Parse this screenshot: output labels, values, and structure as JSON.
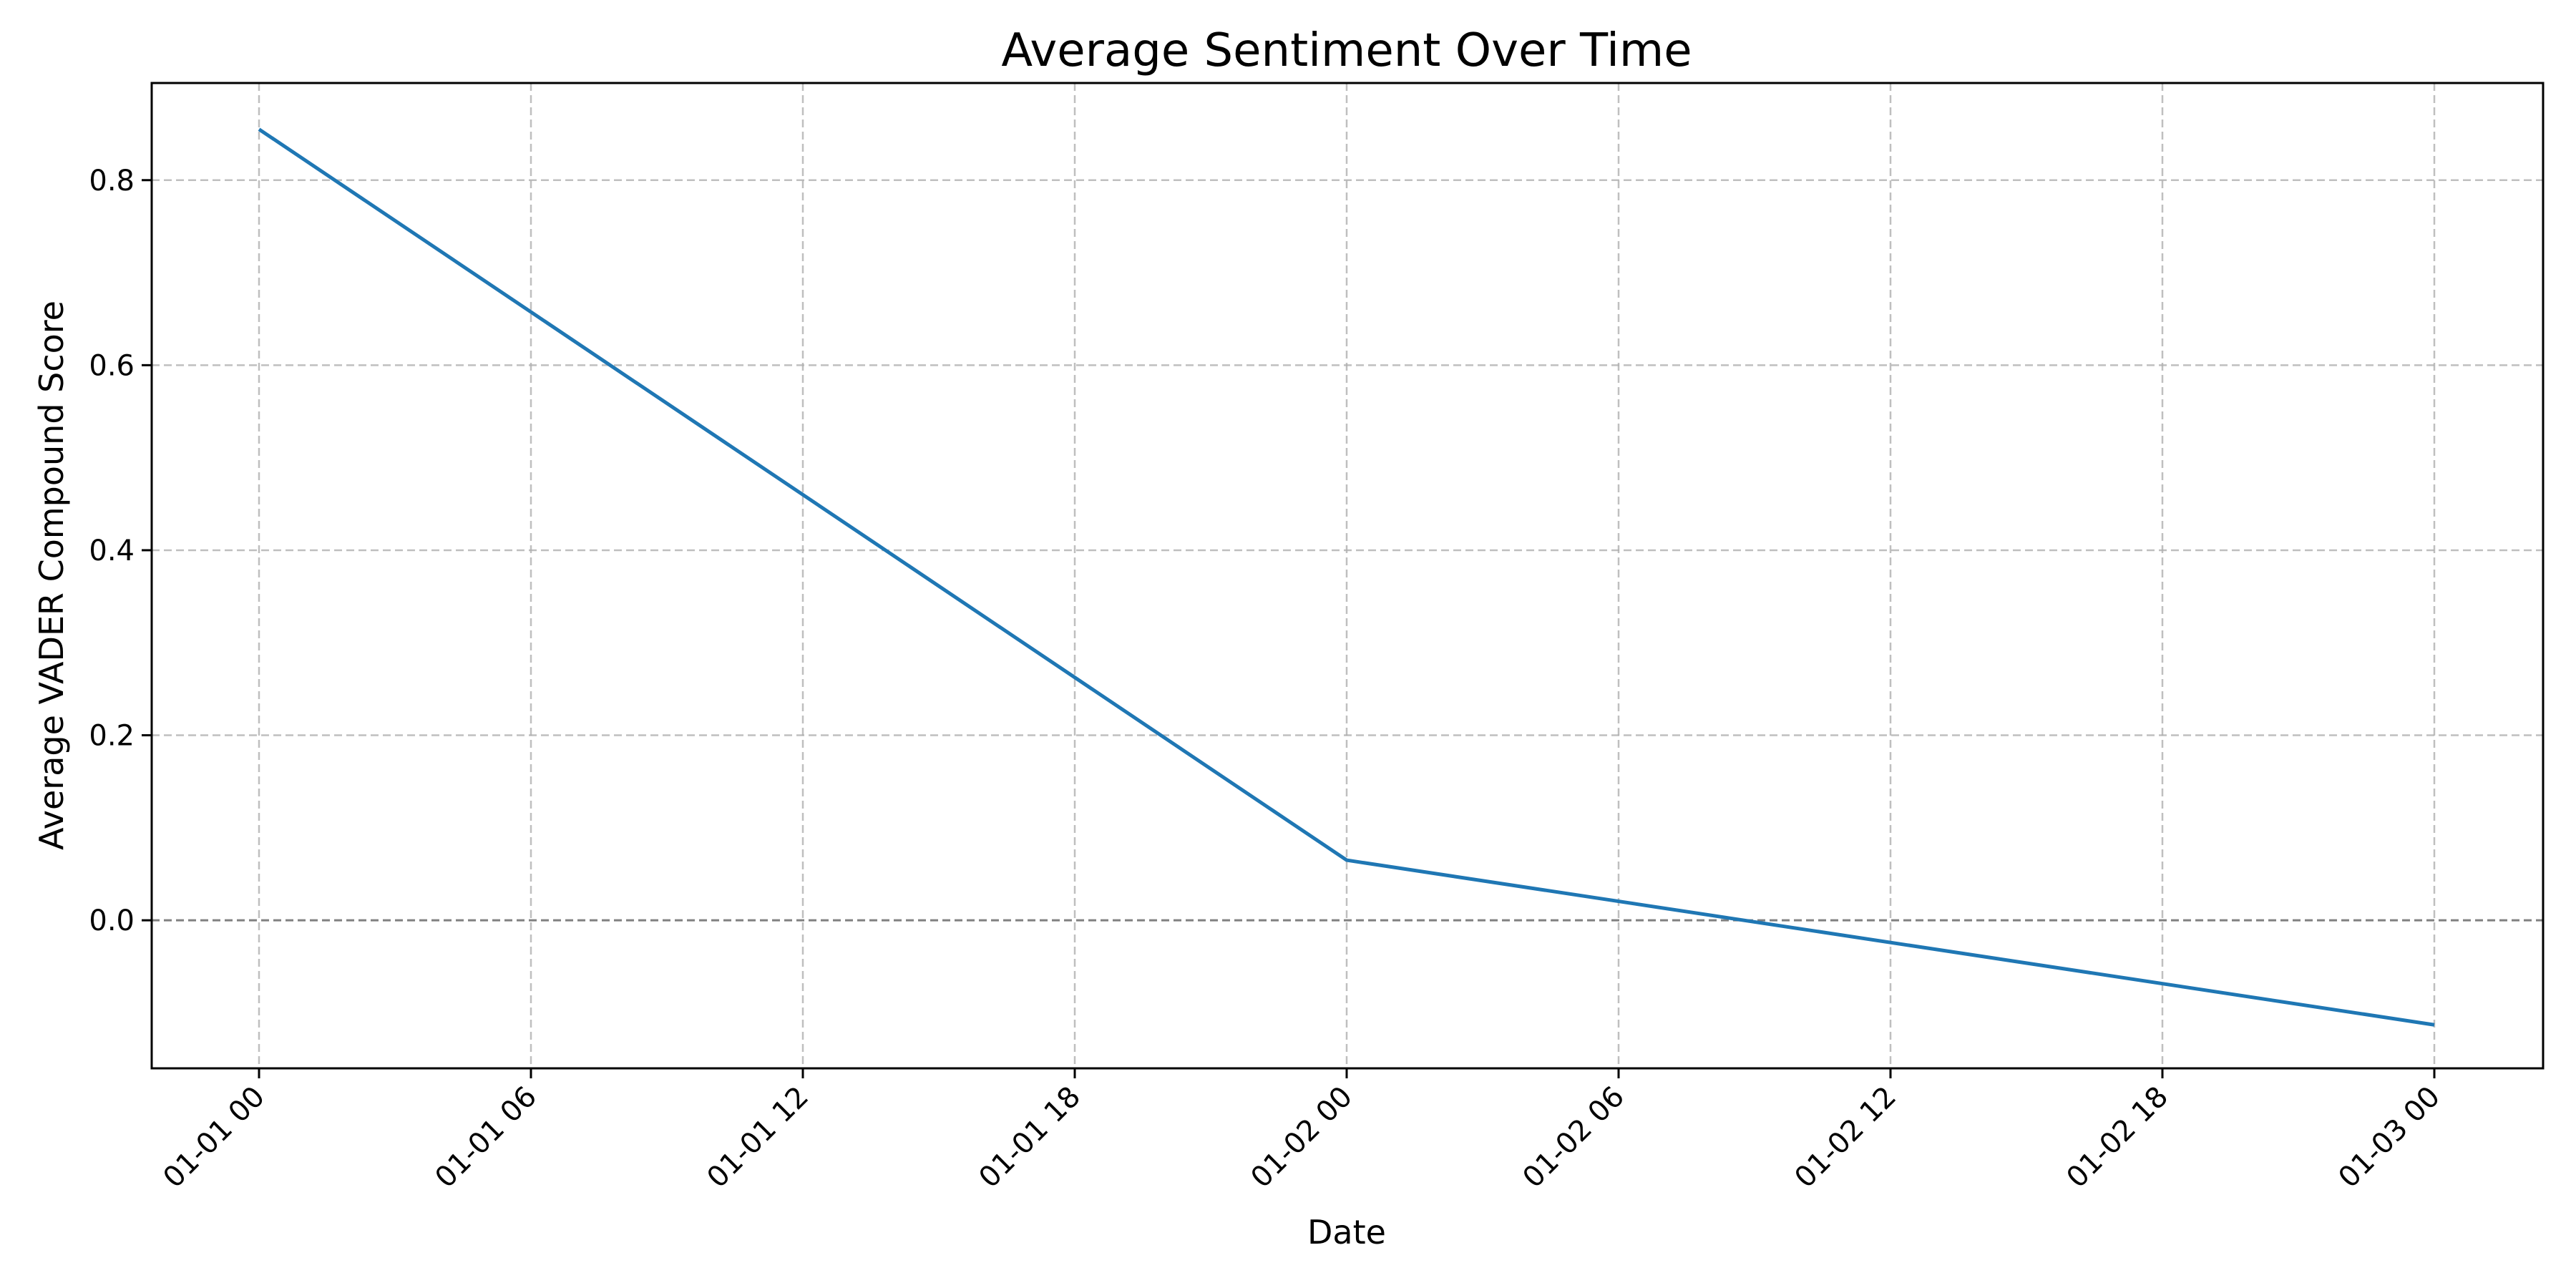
{
  "chart_data": {
    "type": "line",
    "title": "Average Sentiment Over Time",
    "xlabel": "Date",
    "ylabel": "Average VADER Compound Score",
    "x_ticks": [
      "01-01 00",
      "01-01 06",
      "01-01 12",
      "01-01 18",
      "01-02 00",
      "01-02 06",
      "01-02 12",
      "01-02 18",
      "01-03 00"
    ],
    "y_ticks": [
      "0.0",
      "0.2",
      "0.4",
      "0.6",
      "0.8"
    ],
    "xlim": [
      "12-31 22:24",
      "01-03 01:36"
    ],
    "ylim": [
      -0.16,
      0.905
    ],
    "grid": true,
    "reference_line": {
      "y": 0.0,
      "style": "dashed",
      "color": "#808080"
    },
    "series": [
      {
        "color": "#1f77b4",
        "points": [
          {
            "x": "01-01 00",
            "y": 0.855
          },
          {
            "x": "01-02 00",
            "y": 0.065
          },
          {
            "x": "01-03 00",
            "y": -0.113
          }
        ]
      }
    ]
  }
}
